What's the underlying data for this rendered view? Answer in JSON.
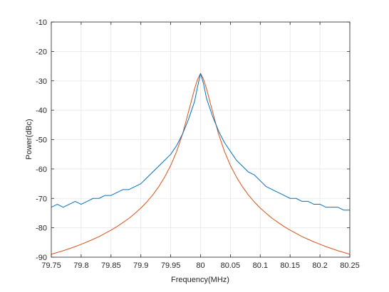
{
  "chart_data": {
    "type": "line",
    "title": "",
    "xlabel": "Frequency(MHz)",
    "ylabel": "Power(dBc)",
    "xlim": [
      79.75,
      80.25
    ],
    "ylim": [
      -90,
      -10
    ],
    "xticks": [
      79.75,
      79.8,
      79.85,
      79.9,
      79.95,
      80,
      80.05,
      80.1,
      80.15,
      80.2,
      80.25
    ],
    "xtick_labels": [
      "79.75",
      "79.8",
      "79.85",
      "79.9",
      "79.95",
      "80",
      "80.05",
      "80.1",
      "80.15",
      "80.2",
      "80.25"
    ],
    "yticks": [
      -90,
      -80,
      -70,
      -60,
      -50,
      -40,
      -30,
      -20,
      -10
    ],
    "ytick_labels": [
      "-90",
      "-80",
      "-70",
      "-60",
      "-50",
      "-40",
      "-30",
      "-20",
      "-10"
    ],
    "grid": true,
    "series": [
      {
        "color": "#0072BD",
        "x": [
          79.75,
          79.76,
          79.77,
          79.78,
          79.79,
          79.8,
          79.81,
          79.82,
          79.83,
          79.84,
          79.85,
          79.86,
          79.87,
          79.88,
          79.89,
          79.9,
          79.91,
          79.92,
          79.93,
          79.94,
          79.95,
          79.96,
          79.97,
          79.98,
          79.99,
          79.995,
          80,
          80.005,
          80.01,
          80.02,
          80.03,
          80.04,
          80.05,
          80.06,
          80.07,
          80.08,
          80.09,
          80.1,
          80.11,
          80.12,
          80.13,
          80.14,
          80.15,
          80.16,
          80.17,
          80.18,
          80.19,
          80.2,
          80.21,
          80.22,
          80.23,
          80.24,
          80.25
        ],
        "y": [
          -73,
          -72,
          -73,
          -72,
          -71,
          -72,
          -71,
          -70,
          -70,
          -69,
          -69,
          -68,
          -67,
          -67,
          -66,
          -65,
          -63,
          -61,
          -59,
          -57,
          -55,
          -52,
          -48,
          -43,
          -37,
          -32,
          -27.5,
          -31,
          -36,
          -42,
          -47,
          -51,
          -54,
          -57,
          -59,
          -61,
          -62,
          -64,
          -66,
          -67,
          -68,
          -69,
          -70,
          -70,
          -71,
          -71,
          -72,
          -72,
          -73,
          -73,
          -73,
          -74,
          -74
        ]
      },
      {
        "color": "#D95319",
        "x": [
          79.75,
          79.76,
          79.77,
          79.78,
          79.79,
          79.8,
          79.81,
          79.82,
          79.83,
          79.84,
          79.85,
          79.86,
          79.87,
          79.88,
          79.89,
          79.9,
          79.91,
          79.92,
          79.93,
          79.94,
          79.95,
          79.96,
          79.97,
          79.98,
          79.99,
          79.995,
          80,
          80.005,
          80.01,
          80.02,
          80.03,
          80.04,
          80.05,
          80.06,
          80.07,
          80.08,
          80.09,
          80.1,
          80.11,
          80.12,
          80.13,
          80.14,
          80.15,
          80.16,
          80.17,
          80.18,
          80.19,
          80.2,
          80.21,
          80.22,
          80.23,
          80.24,
          80.25
        ],
        "y": [
          -89,
          -88.4,
          -87.8,
          -87.1,
          -86.4,
          -85.6,
          -84.8,
          -83.9,
          -83,
          -81.9,
          -80.8,
          -79.6,
          -78.2,
          -76.8,
          -75.1,
          -73.3,
          -71.2,
          -68.8,
          -66,
          -62.7,
          -58.8,
          -54,
          -48,
          -40.4,
          -32.7,
          -29.5,
          -27.5,
          -29.5,
          -32.7,
          -40.4,
          -48,
          -54,
          -58.8,
          -62.7,
          -66,
          -68.8,
          -71.2,
          -73.3,
          -75.1,
          -76.8,
          -78.2,
          -79.6,
          -80.8,
          -81.9,
          -83,
          -83.9,
          -84.8,
          -85.6,
          -86.4,
          -87.1,
          -87.8,
          -88.4,
          -89
        ]
      }
    ]
  }
}
